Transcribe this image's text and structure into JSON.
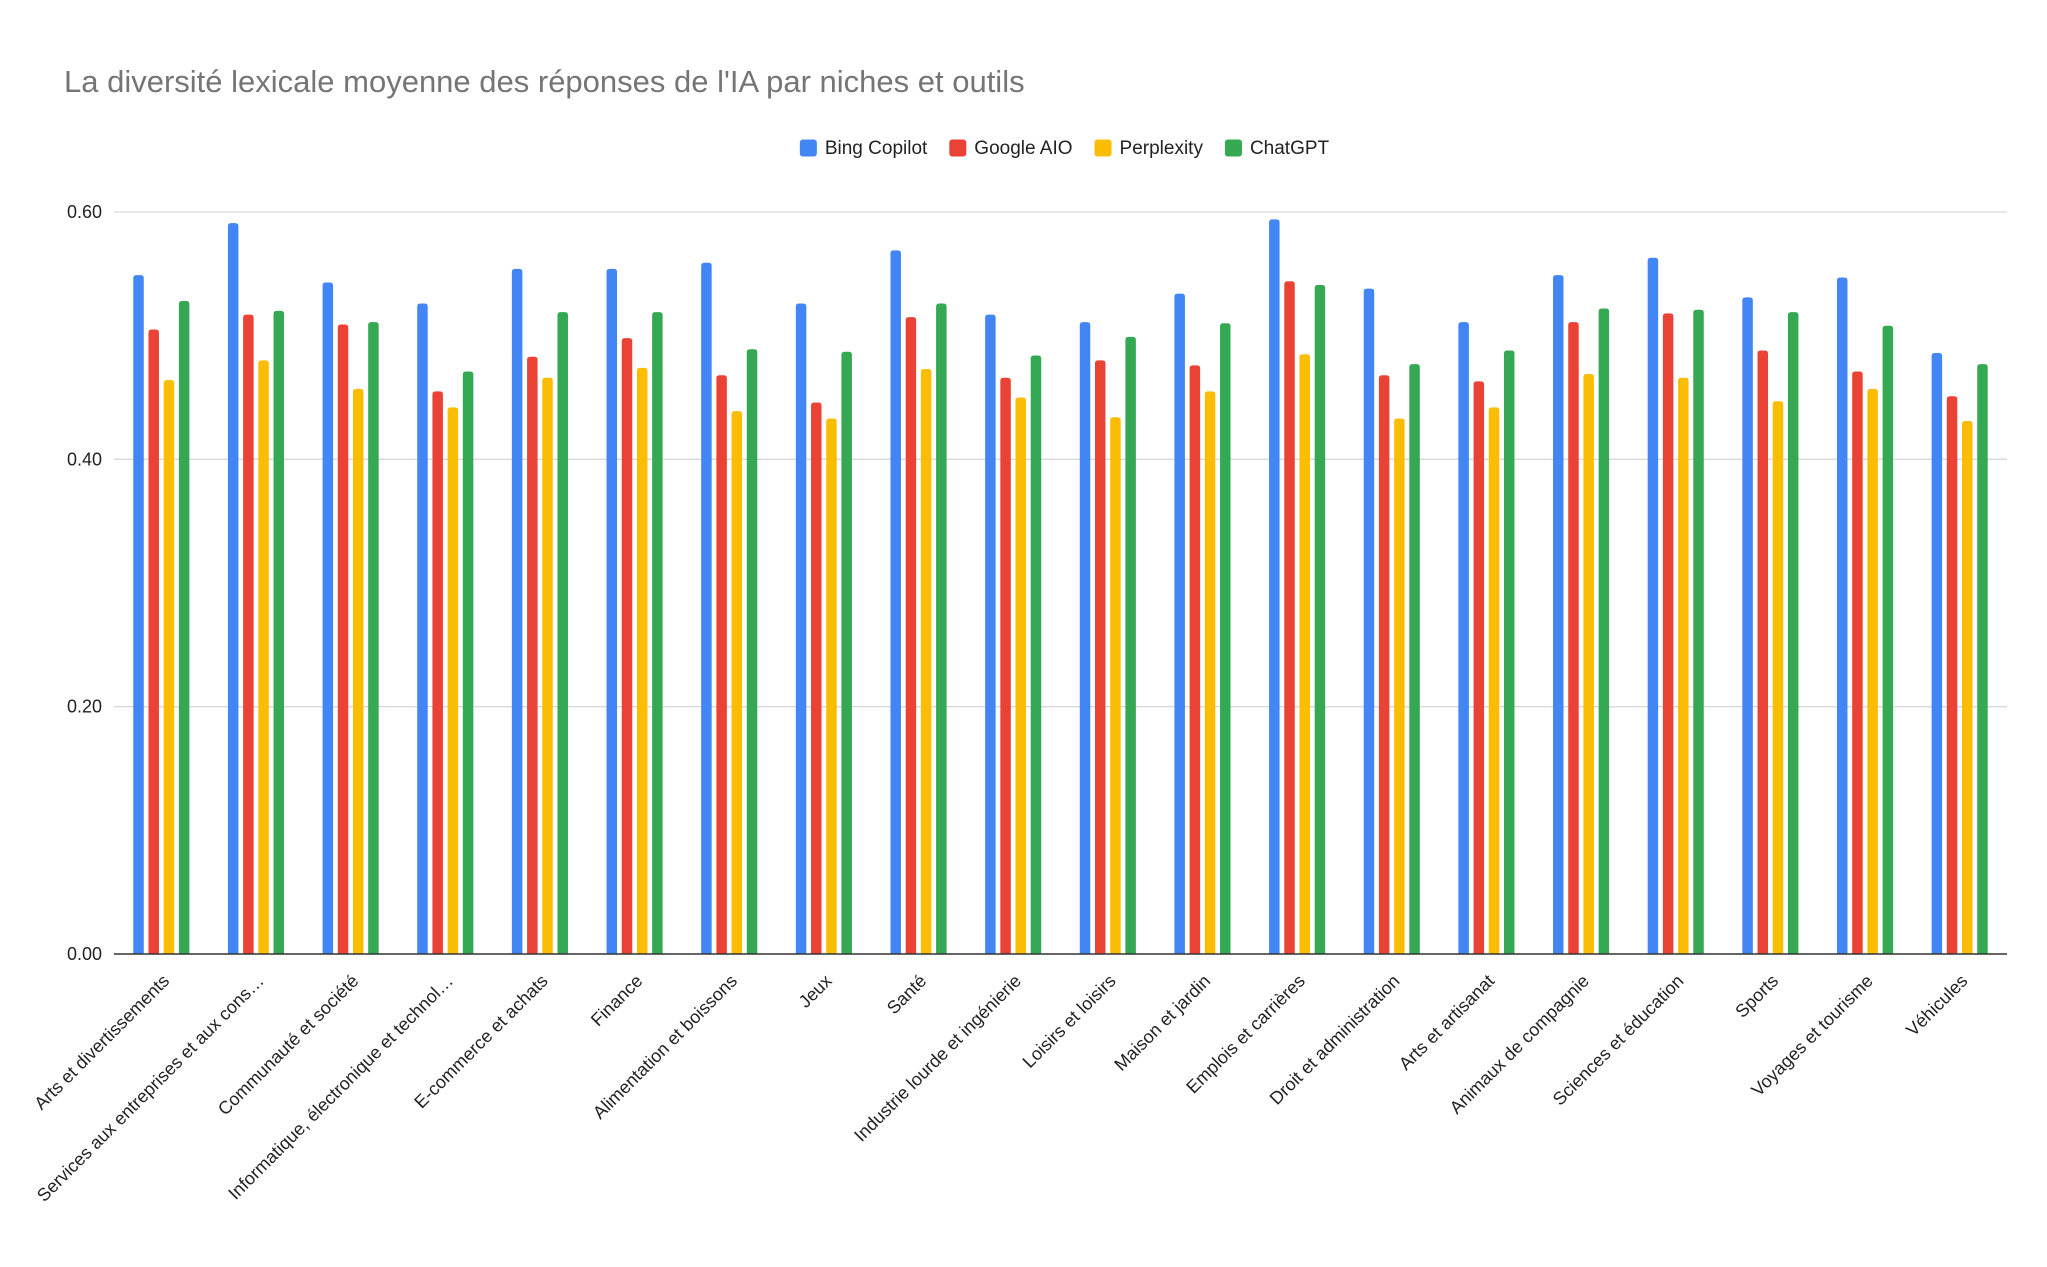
{
  "chart_data": {
    "type": "bar",
    "title": "La diversité lexicale moyenne des réponses de l'IA par niches et outils",
    "xlabel": "",
    "ylabel": "",
    "ylim": [
      0,
      0.6
    ],
    "yticks": [
      "0.00",
      "0.20",
      "0.40",
      "0.60"
    ],
    "grid": true,
    "legend_position": "top-center",
    "categories": [
      "Arts et divertissements",
      "Services aux entreprises et aux cons…",
      "Communauté et société",
      "Informatique, électronique et technol…",
      "E-commerce et achats",
      "Finance",
      "Alimentation et boissons",
      "Jeux",
      "Santé",
      "Industrie lourde et ingénierie",
      "Loisirs et loisirs",
      "Maison et jardin",
      "Emplois et carrières",
      "Droit et administration",
      "Arts et artisanat",
      "Animaux de compagnie",
      "Sciences et éducation",
      "Sports",
      "Voyages et tourisme",
      "Véhicules"
    ],
    "series": [
      {
        "name": "Bing Copilot",
        "color": "#4285f4",
        "values": [
          0.549,
          0.591,
          0.543,
          0.526,
          0.554,
          0.554,
          0.559,
          0.526,
          0.569,
          0.517,
          0.511,
          0.534,
          0.594,
          0.538,
          0.511,
          0.549,
          0.563,
          0.531,
          0.547,
          0.486
        ]
      },
      {
        "name": "Google AIO",
        "color": "#ea4335",
        "values": [
          0.505,
          0.517,
          0.509,
          0.455,
          0.483,
          0.498,
          0.468,
          0.446,
          0.515,
          0.466,
          0.48,
          0.476,
          0.544,
          0.468,
          0.463,
          0.511,
          0.518,
          0.488,
          0.471,
          0.451
        ]
      },
      {
        "name": "Perplexity",
        "color": "#fbbc04",
        "values": [
          0.464,
          0.48,
          0.457,
          0.442,
          0.466,
          0.474,
          0.439,
          0.433,
          0.473,
          0.45,
          0.434,
          0.455,
          0.485,
          0.433,
          0.442,
          0.469,
          0.466,
          0.447,
          0.457,
          0.431
        ]
      },
      {
        "name": "ChatGPT",
        "color": "#34a853",
        "values": [
          0.528,
          0.52,
          0.511,
          0.471,
          0.519,
          0.519,
          0.489,
          0.487,
          0.526,
          0.484,
          0.499,
          0.51,
          0.541,
          0.477,
          0.488,
          0.522,
          0.521,
          0.519,
          0.508,
          0.477
        ]
      }
    ]
  }
}
